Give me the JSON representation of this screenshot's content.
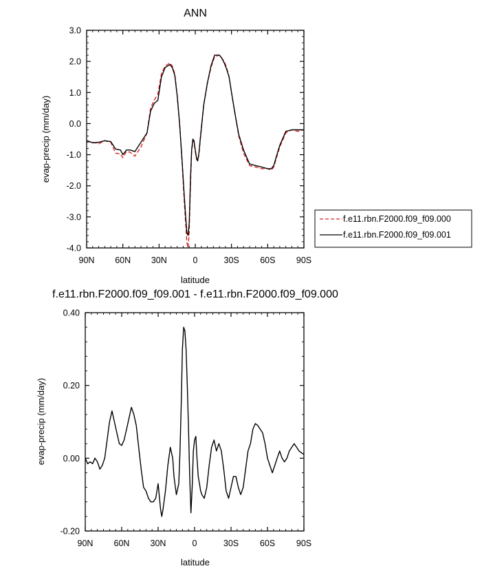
{
  "chart_data": [
    {
      "type": "line",
      "title": "ANN",
      "xlabel": "latitude",
      "ylabel": "evap-precip (mm/day)",
      "xlim": [
        90,
        -90
      ],
      "ylim": [
        -4.0,
        3.0
      ],
      "yticks": [
        -4.0,
        -3.0,
        -2.0,
        -1.0,
        0.0,
        1.0,
        2.0,
        3.0
      ],
      "ytick_labels": [
        "-4.0",
        "-3.0",
        "-2.0",
        "-1.0",
        "0.0",
        "1.0",
        "2.0",
        "3.0"
      ],
      "xticks": [
        90,
        60,
        30,
        0,
        -30,
        -60,
        -90
      ],
      "xtick_labels": [
        "90N",
        "60N",
        "30N",
        "0",
        "30S",
        "60S",
        "90S"
      ],
      "legend_position": "outside-right",
      "series": [
        {
          "name": "f.e11.rbn.F2000.f09_f09.000",
          "color": "#dd2222",
          "dash": "dashed",
          "x": [
            90,
            85,
            80,
            75,
            70,
            66,
            62,
            60,
            57,
            54,
            50,
            45,
            40,
            37,
            34,
            31,
            28,
            25,
            23,
            21,
            19,
            17,
            15,
            13,
            11,
            9,
            7,
            6,
            5,
            4,
            3,
            2,
            1,
            0,
            -1,
            -2,
            -3,
            -4,
            -5,
            -7,
            -10,
            -13,
            -16,
            -20,
            -22,
            -24,
            -26,
            -28,
            -30,
            -33,
            -36,
            -40,
            -45,
            -50,
            -55,
            -60,
            -63,
            -65,
            -68,
            -70,
            -75,
            -80,
            -85,
            -90
          ],
          "y": [
            -0.55,
            -0.6,
            -0.65,
            -0.55,
            -0.6,
            -0.95,
            -0.98,
            -1.1,
            -0.9,
            -0.92,
            -1.05,
            -0.75,
            -0.3,
            0.5,
            0.75,
            0.95,
            1.6,
            1.85,
            1.9,
            1.95,
            1.85,
            1.6,
            0.9,
            0.0,
            -1.2,
            -2.6,
            -3.8,
            -4.0,
            -3.5,
            -2.0,
            -0.9,
            -0.55,
            -0.6,
            -0.9,
            -1.15,
            -1.2,
            -1.0,
            -0.6,
            -0.2,
            0.6,
            1.3,
            1.8,
            2.15,
            2.2,
            2.1,
            2.0,
            1.8,
            1.5,
            1.0,
            0.3,
            -0.4,
            -0.95,
            -1.35,
            -1.4,
            -1.45,
            -1.45,
            -1.5,
            -1.4,
            -1.0,
            -0.75,
            -0.3,
            -0.2,
            -0.25,
            -0.2
          ]
        },
        {
          "name": "f.e11.rbn.F2000.f09_f09.001",
          "color": "#000000",
          "dash": "solid",
          "x": [
            90,
            85,
            80,
            75,
            70,
            66,
            62,
            60,
            57,
            54,
            50,
            45,
            40,
            37,
            34,
            31,
            28,
            25,
            23,
            21,
            19,
            17,
            15,
            13,
            11,
            9,
            7,
            6,
            5,
            4,
            3,
            2,
            1,
            0,
            -1,
            -2,
            -3,
            -4,
            -5,
            -7,
            -10,
            -13,
            -16,
            -20,
            -22,
            -24,
            -26,
            -28,
            -30,
            -33,
            -36,
            -40,
            -45,
            -50,
            -55,
            -60,
            -63,
            -65,
            -68,
            -70,
            -75,
            -80,
            -85,
            -90
          ],
          "y": [
            -0.55,
            -0.62,
            -0.6,
            -0.55,
            -0.58,
            -0.82,
            -0.85,
            -1.0,
            -0.85,
            -0.85,
            -0.9,
            -0.6,
            -0.3,
            0.4,
            0.65,
            0.75,
            1.5,
            1.8,
            1.85,
            1.9,
            1.8,
            1.55,
            0.9,
            0.0,
            -1.15,
            -2.4,
            -3.5,
            -3.6,
            -3.2,
            -1.8,
            -0.85,
            -0.5,
            -0.55,
            -0.85,
            -1.1,
            -1.2,
            -0.95,
            -0.55,
            -0.15,
            0.6,
            1.3,
            1.85,
            2.2,
            2.2,
            2.1,
            1.95,
            1.75,
            1.5,
            1.0,
            0.3,
            -0.35,
            -0.85,
            -1.3,
            -1.35,
            -1.4,
            -1.45,
            -1.45,
            -1.35,
            -0.95,
            -0.7,
            -0.25,
            -0.2,
            -0.2,
            -0.2
          ]
        }
      ]
    },
    {
      "type": "line",
      "title": "f.e11.rbn.F2000.f09_f09.001 - f.e11.rbn.F2000.f09_f09.000",
      "xlabel": "latitude",
      "ylabel": "evap-precip (mm/day)",
      "xlim": [
        90,
        -90
      ],
      "ylim": [
        -0.2,
        0.4
      ],
      "yticks": [
        -0.2,
        0.0,
        0.2,
        0.4
      ],
      "ytick_labels": [
        "-0.20",
        "0.00",
        "0.20",
        "0.40"
      ],
      "xticks": [
        90,
        60,
        30,
        0,
        -30,
        -60,
        -90
      ],
      "xtick_labels": [
        "90N",
        "60N",
        "30N",
        "0",
        "30S",
        "60S",
        "90S"
      ],
      "series": [
        {
          "color": "#000000",
          "x": [
            90,
            88,
            86,
            84,
            82,
            80,
            78,
            76,
            74,
            72,
            70,
            68,
            66,
            64,
            62,
            60,
            58,
            56,
            54,
            52,
            50,
            48,
            46,
            44,
            42,
            40,
            38,
            36,
            34,
            32,
            30,
            28,
            27,
            26,
            24,
            22,
            20,
            18,
            17,
            15,
            13,
            12,
            11,
            10,
            9,
            8,
            7,
            6,
            5,
            4,
            3,
            2,
            1,
            0,
            -1,
            -2,
            -3,
            -4,
            -5,
            -6,
            -8,
            -10,
            -12,
            -14,
            -16,
            -18,
            -20,
            -22,
            -24,
            -26,
            -28,
            -30,
            -32,
            -34,
            -36,
            -38,
            -40,
            -42,
            -44,
            -46,
            -48,
            -50,
            -52,
            -54,
            -56,
            -58,
            -60,
            -62,
            -64,
            -66,
            -68,
            -70,
            -72,
            -74,
            -76,
            -78,
            -80,
            -82,
            -84,
            -86,
            -88,
            -90
          ],
          "y": [
            0.0,
            -0.015,
            -0.01,
            -0.015,
            0.0,
            -0.01,
            -0.03,
            -0.02,
            0.0,
            0.05,
            0.1,
            0.13,
            0.1,
            0.07,
            0.04,
            0.035,
            0.05,
            0.08,
            0.11,
            0.14,
            0.12,
            0.09,
            0.03,
            -0.03,
            -0.08,
            -0.09,
            -0.11,
            -0.12,
            -0.12,
            -0.11,
            -0.07,
            -0.14,
            -0.16,
            -0.14,
            -0.09,
            -0.02,
            0.03,
            0.0,
            -0.05,
            -0.1,
            -0.07,
            0.02,
            0.15,
            0.3,
            0.36,
            0.35,
            0.3,
            0.2,
            0.08,
            -0.05,
            -0.15,
            -0.08,
            0.02,
            0.05,
            0.06,
            0.0,
            -0.05,
            -0.07,
            -0.09,
            -0.1,
            -0.11,
            -0.08,
            -0.02,
            0.03,
            0.05,
            0.02,
            0.04,
            0.02,
            -0.03,
            -0.09,
            -0.11,
            -0.08,
            -0.05,
            -0.05,
            -0.08,
            -0.1,
            -0.08,
            -0.03,
            0.02,
            0.04,
            0.08,
            0.095,
            0.09,
            0.08,
            0.07,
            0.04,
            0.0,
            -0.02,
            -0.04,
            -0.02,
            0.0,
            0.02,
            0.0,
            -0.01,
            0.0,
            0.02,
            0.03,
            0.04,
            0.03,
            0.02,
            0.015,
            0.01
          ]
        }
      ]
    }
  ]
}
